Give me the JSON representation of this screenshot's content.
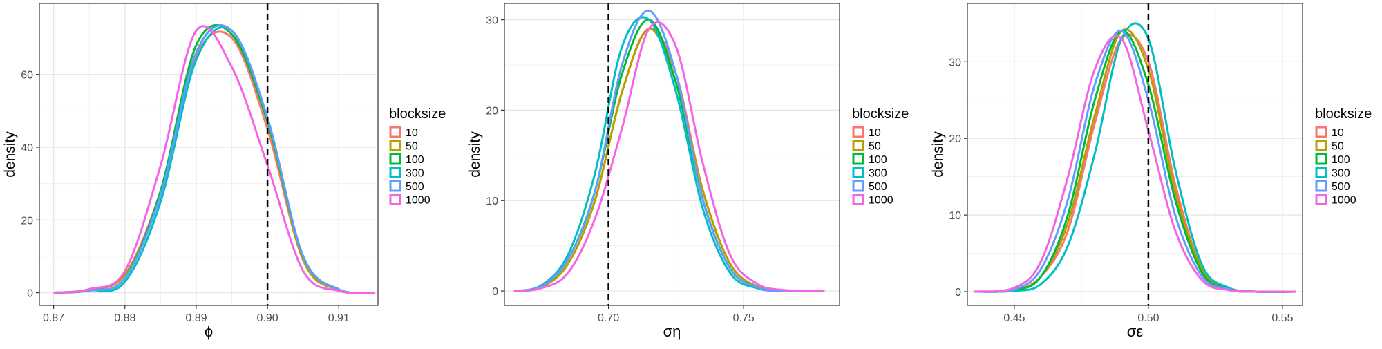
{
  "legend": {
    "title": "blocksize",
    "placement": "right",
    "items": [
      {
        "label": "10",
        "color": "#F8766D"
      },
      {
        "label": "50",
        "color": "#B79F00"
      },
      {
        "label": "100",
        "color": "#00BA38"
      },
      {
        "label": "300",
        "color": "#00BFC4"
      },
      {
        "label": "500",
        "color": "#619CFF"
      },
      {
        "label": "1000",
        "color": "#F564E3"
      }
    ]
  },
  "chart_data": [
    {
      "type": "line",
      "xlabel": "ϕ",
      "ylabel": "density",
      "xlim": [
        0.868,
        0.9155
      ],
      "ylim": [
        -3.5,
        79.5
      ],
      "xticks": [
        0.87,
        0.88,
        0.89,
        0.9,
        0.91
      ],
      "xtick_labels": [
        "0.87",
        "0.88",
        "0.89",
        "0.90",
        "0.91"
      ],
      "yticks": [
        0,
        20,
        40,
        60
      ],
      "ytick_labels": [
        "0",
        "20",
        "40",
        "60"
      ],
      "reference_line_x": 0.9,
      "grid": true,
      "x": [
        0.87,
        0.875,
        0.88,
        0.885,
        0.89,
        0.895,
        0.9,
        0.905,
        0.91,
        0.915
      ],
      "series": [
        {
          "name": "10",
          "values": [
            0,
            0.8,
            5,
            28,
            65,
            70,
            45,
            9,
            0.8,
            0
          ]
        },
        {
          "name": "50",
          "values": [
            0,
            0.7,
            5,
            27,
            66,
            72,
            47,
            9,
            0.8,
            0
          ]
        },
        {
          "name": "100",
          "values": [
            0,
            0.7,
            4,
            28,
            68,
            71,
            47,
            10,
            0.9,
            0
          ]
        },
        {
          "name": "300",
          "values": [
            0,
            0.6,
            3,
            25,
            64,
            72,
            48,
            10,
            0.9,
            0
          ]
        },
        {
          "name": "500",
          "values": [
            0,
            0.6,
            4,
            27,
            66,
            72,
            48,
            10,
            0.9,
            0
          ]
        },
        {
          "name": "1000",
          "values": [
            0,
            1,
            6,
            35,
            72,
            62,
            35,
            6,
            0.5,
            0
          ]
        }
      ]
    },
    {
      "type": "line",
      "xlabel": "ση",
      "ylabel": "density",
      "xlim": [
        0.6615,
        0.7855
      ],
      "ylim": [
        -1.6,
        31.8
      ],
      "xticks": [
        0.7,
        0.75
      ],
      "xtick_labels": [
        "0.70",
        "0.75"
      ],
      "yticks": [
        0,
        10,
        20,
        30
      ],
      "ytick_labels": [
        "0",
        "10",
        "20",
        "30"
      ],
      "reference_line_x": 0.7,
      "grid": true,
      "x": [
        0.665,
        0.675,
        0.685,
        0.695,
        0.705,
        0.715,
        0.725,
        0.735,
        0.745,
        0.755,
        0.765,
        0.78
      ],
      "series": [
        {
          "name": "10",
          "values": [
            0,
            0.4,
            3,
            10,
            22,
            29,
            24,
            11,
            3,
            0.5,
            0,
            0
          ]
        },
        {
          "name": "50",
          "values": [
            0,
            0.4,
            3,
            10,
            22,
            29,
            23,
            11,
            3,
            0.5,
            0,
            0
          ]
        },
        {
          "name": "100",
          "values": [
            0,
            0.5,
            3.5,
            11,
            24,
            30,
            23,
            10,
            2.5,
            0.4,
            0,
            0
          ]
        },
        {
          "name": "300",
          "values": [
            0,
            0.6,
            4,
            13,
            27,
            30,
            22,
            9,
            2,
            0.3,
            0,
            0
          ]
        },
        {
          "name": "500",
          "values": [
            0,
            0.5,
            3.5,
            11,
            25,
            31,
            24,
            10,
            2.5,
            0.4,
            0,
            0
          ]
        },
        {
          "name": "1000",
          "values": [
            0,
            0.3,
            2,
            8,
            18,
            29,
            27,
            14,
            4,
            0.8,
            0.1,
            0
          ]
        }
      ]
    },
    {
      "type": "line",
      "xlabel": "σε",
      "ylabel": "density",
      "xlim": [
        0.4325,
        0.5575
      ],
      "ylim": [
        -1.8,
        37.6
      ],
      "xticks": [
        0.45,
        0.5,
        0.55
      ],
      "xtick_labels": [
        "0.45",
        "0.50",
        "0.55"
      ],
      "yticks": [
        0,
        10,
        20,
        30
      ],
      "ytick_labels": [
        "0",
        "10",
        "20",
        "30"
      ],
      "reference_line_x": 0.5,
      "grid": true,
      "x": [
        0.435,
        0.45,
        0.46,
        0.47,
        0.48,
        0.49,
        0.5,
        0.51,
        0.52,
        0.53,
        0.54,
        0.555
      ],
      "series": [
        {
          "name": "10",
          "values": [
            0,
            0.2,
            2,
            8,
            22,
            33,
            30,
            14,
            3,
            0.5,
            0,
            0
          ]
        },
        {
          "name": "50",
          "values": [
            0,
            0.2,
            2,
            9,
            23,
            34,
            29,
            13,
            3,
            0.4,
            0,
            0
          ]
        },
        {
          "name": "100",
          "values": [
            0,
            0.2,
            2,
            10,
            25,
            34,
            27,
            12,
            2.5,
            0.3,
            0,
            0
          ]
        },
        {
          "name": "300",
          "values": [
            0,
            0.1,
            1,
            6,
            18,
            33,
            33,
            16,
            3.5,
            0.5,
            0,
            0
          ]
        },
        {
          "name": "500",
          "values": [
            0,
            0.3,
            3,
            12,
            27,
            34,
            25,
            10,
            2,
            0.3,
            0,
            0
          ]
        },
        {
          "name": "1000",
          "values": [
            0,
            0.5,
            4,
            15,
            29,
            33,
            21,
            8,
            1.5,
            0.2,
            0,
            0
          ]
        }
      ]
    }
  ]
}
